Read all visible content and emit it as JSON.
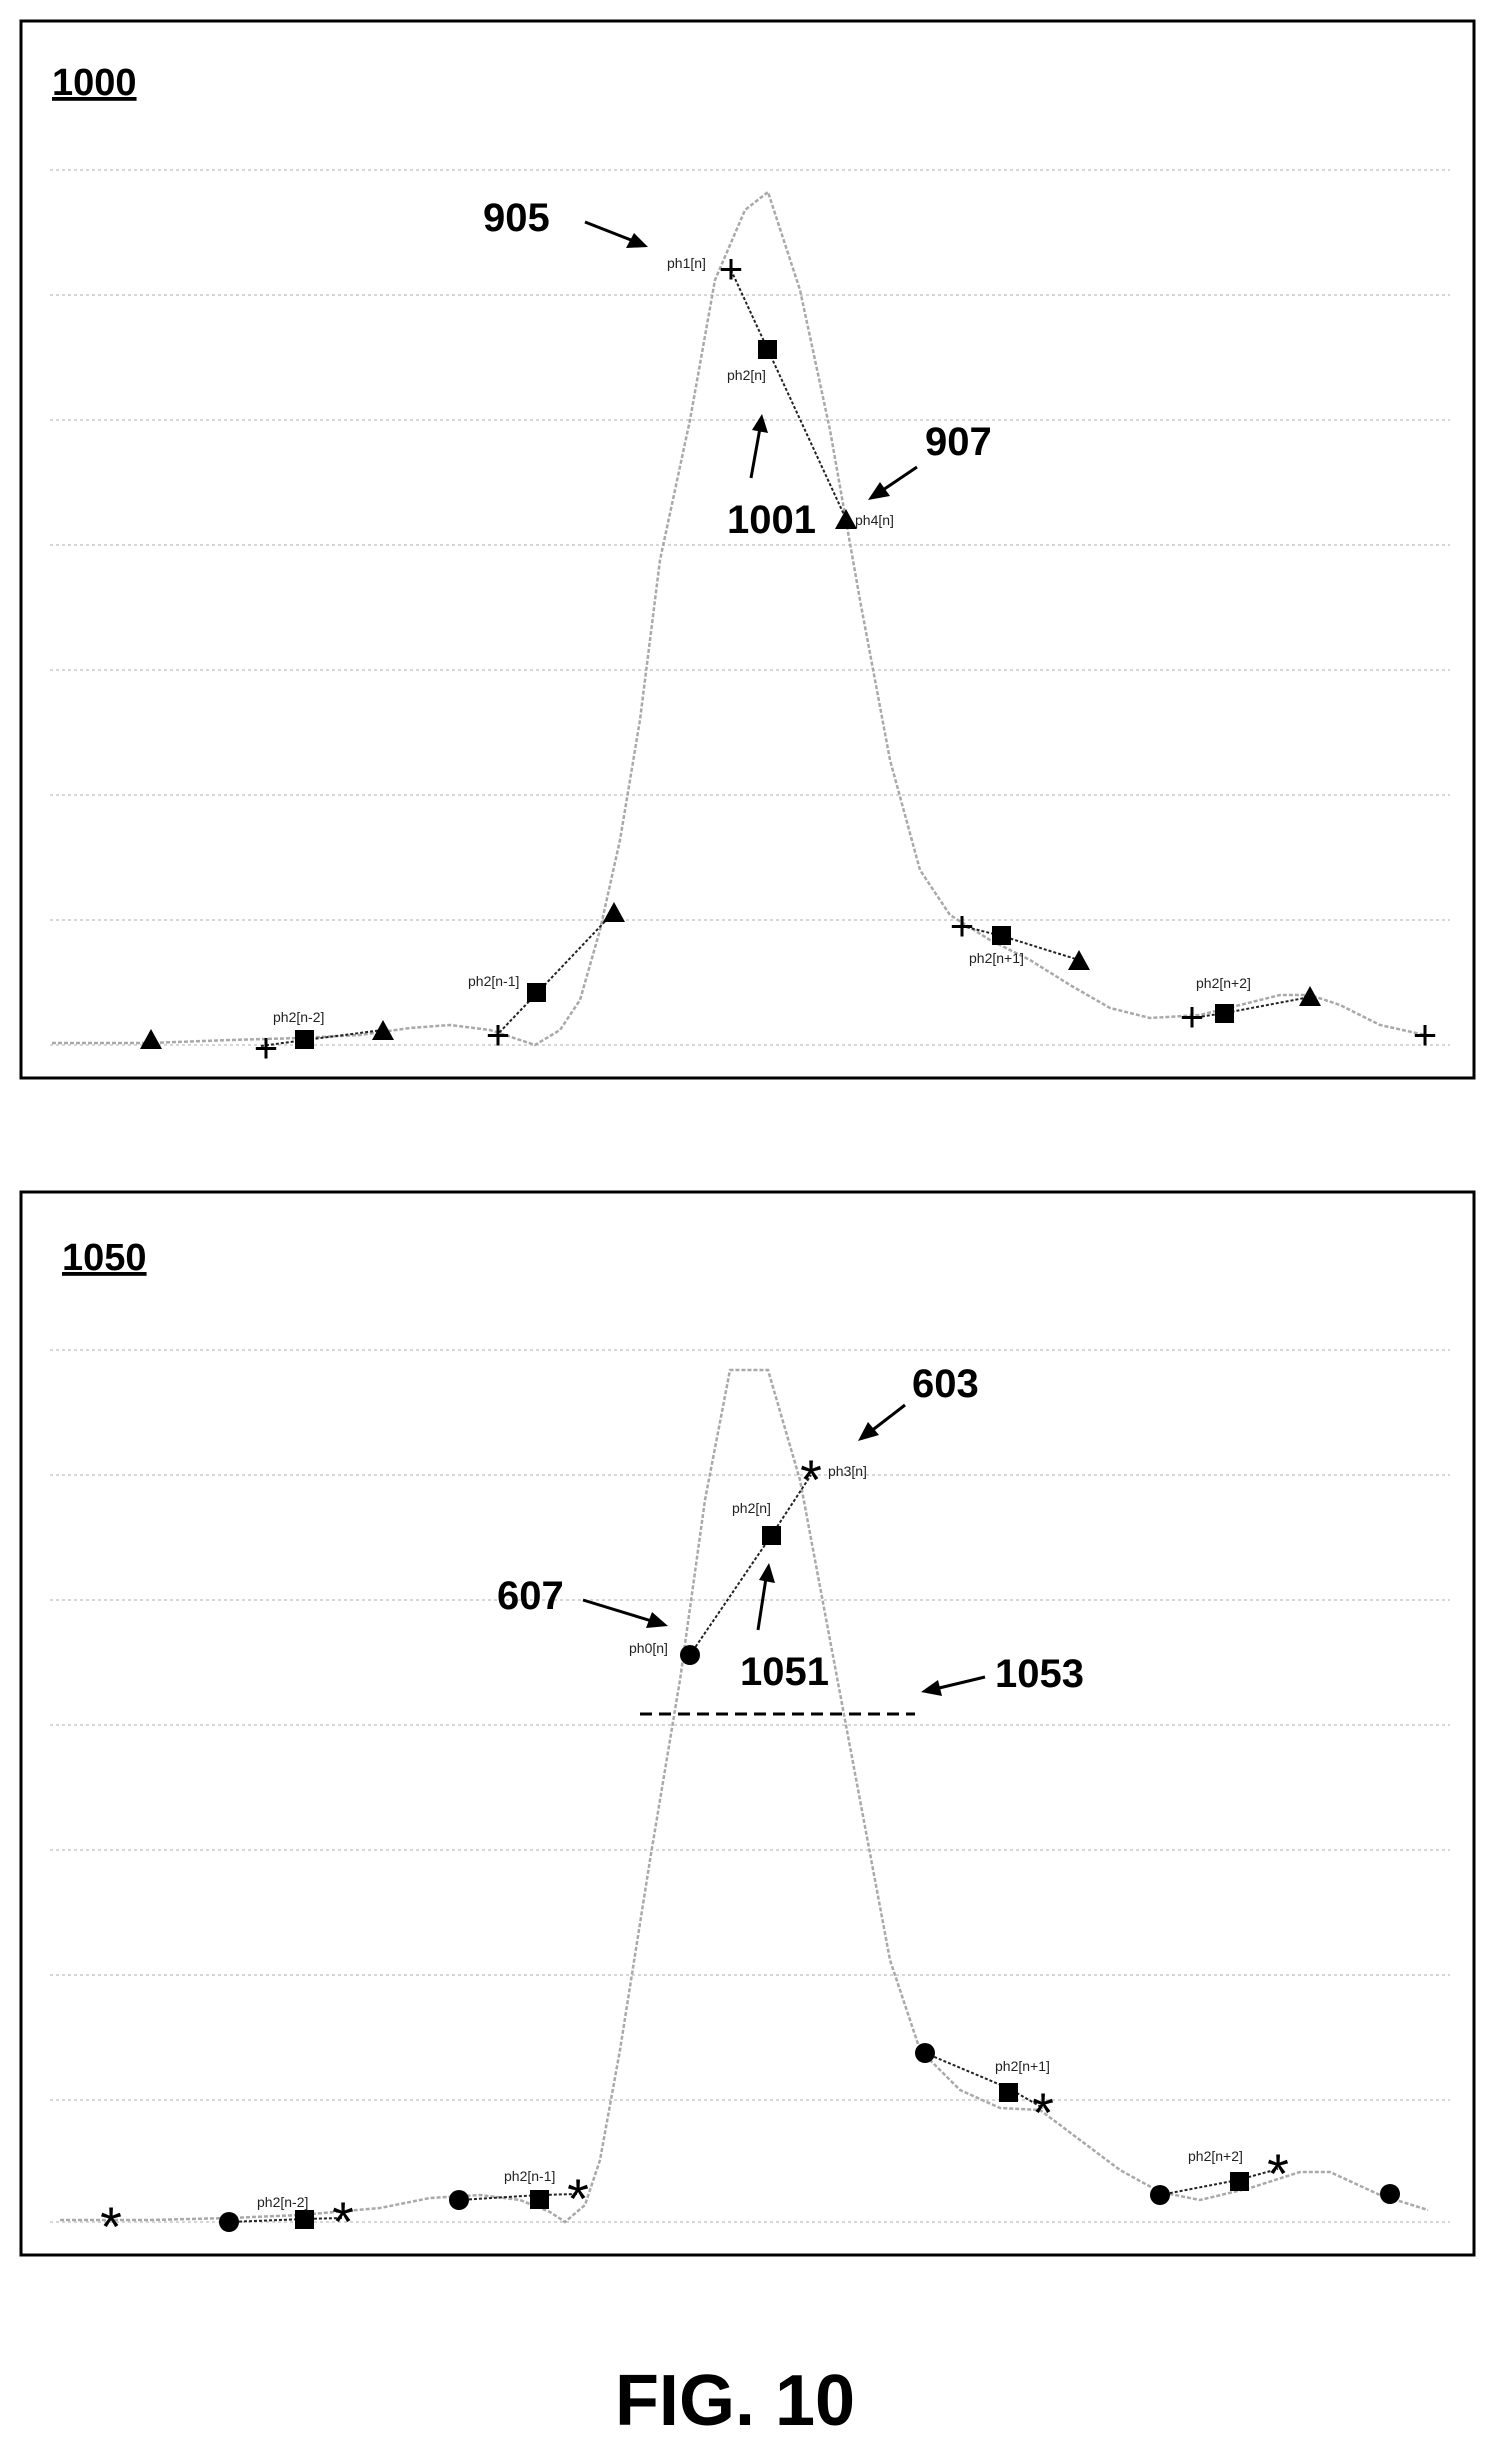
{
  "figure_caption": "FIG. 10",
  "panels": [
    {
      "id": "1000",
      "label": "1000",
      "refs": {
        "r905": "905",
        "r907": "907",
        "r1001": "1001"
      },
      "tags": {
        "ph1_n": "ph1[n]",
        "ph2_n": "ph2[n]",
        "ph4_n": "ph4[n]",
        "ph2_nm2": "ph2[n-2]",
        "ph2_nm1": "ph2[n-1]",
        "ph2_np1": "ph2[n+1]",
        "ph2_np2": "ph2[n+2]"
      }
    },
    {
      "id": "1050",
      "label": "1050",
      "refs": {
        "r603": "603",
        "r607": "607",
        "r1051": "1051",
        "r1053": "1053"
      },
      "tags": {
        "ph3_n": "ph3[n]",
        "ph2_n": "ph2[n]",
        "ph0_n": "ph0[n]",
        "ph2_nm2": "ph2[n-2]",
        "ph2_nm1": "ph2[n-1]",
        "ph2_np1": "ph2[n+1]",
        "ph2_np2": "ph2[n+2]"
      }
    }
  ],
  "markers": {
    "plus": "+",
    "asterisk": "*"
  }
}
